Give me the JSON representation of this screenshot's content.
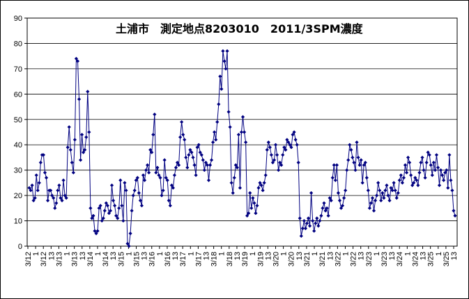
{
  "chart_data": {
    "type": "line",
    "title": "土浦市　測定地点8203010　2011/3SPM濃度",
    "xlabel": "",
    "ylabel": "",
    "ylim": [
      0,
      90
    ],
    "yticks": [
      0,
      10,
      20,
      30,
      40,
      50,
      60,
      70,
      80,
      90
    ],
    "grid": true,
    "legend": "none",
    "series_color": "#000080",
    "background_color": "#ffffff",
    "grid_color": "#000000",
    "x_start_label": "3/12 1",
    "x_step_hours": 1,
    "x_tick_labels": [
      "3/12",
      "1",
      "3/12",
      "13",
      "3/13",
      "1",
      "3/13",
      "13",
      "3/14",
      "1",
      "3/14",
      "13",
      "3/15",
      "1",
      "3/15",
      "13",
      "3/16",
      "1",
      "3/16",
      "13",
      "3/17",
      "1",
      "3/17",
      "13",
      "3/18",
      "1",
      "3/18",
      "13",
      "3/19",
      "1",
      "3/19",
      "13",
      "3/20",
      "1",
      "3/20",
      "13",
      "3/21",
      "1",
      "3/21",
      "13",
      "3/22",
      "1",
      "3/22",
      "13",
      "3/23",
      "1",
      "3/23",
      "13",
      "3/24",
      "1",
      "3/24",
      "13",
      "3/25",
      "1",
      "3/25",
      "13"
    ],
    "x_tick_labels_note_dummy": "",
    "series": [
      {
        "name": "",
        "values": [
          23,
          22,
          24,
          18,
          19,
          28,
          22,
          25,
          33,
          36,
          36,
          29,
          27,
          18,
          22,
          22,
          20,
          19,
          15,
          17,
          22,
          24,
          19,
          18,
          26,
          20,
          19,
          39,
          47,
          38,
          33,
          29,
          42,
          74,
          73,
          58,
          34,
          44,
          37,
          38,
          43,
          61,
          45,
          15,
          11,
          12,
          6,
          5,
          6,
          15,
          16,
          10,
          11,
          14,
          17,
          16,
          13,
          14,
          24,
          18,
          16,
          12,
          11,
          15,
          26,
          16,
          10,
          25,
          22,
          1,
          0,
          5,
          14,
          20,
          22,
          26,
          27,
          21,
          18,
          16,
          28,
          26,
          30,
          32,
          29,
          38,
          37,
          44,
          52,
          29,
          31,
          28,
          27,
          20,
          22,
          34,
          27,
          26,
          18,
          16,
          24,
          23,
          28,
          31,
          33,
          32,
          43,
          49,
          44,
          42,
          35,
          31,
          36,
          38,
          37,
          35,
          32,
          28,
          39,
          40,
          37,
          36,
          34,
          30,
          33,
          32,
          26,
          32,
          34,
          41,
          45,
          42,
          49,
          56,
          67,
          62,
          77,
          73,
          70,
          77,
          53,
          47,
          25,
          21,
          27,
          32,
          31,
          44,
          23,
          45,
          51,
          45,
          41,
          12,
          13,
          21,
          15,
          19,
          17,
          13,
          16,
          23,
          25,
          24,
          22,
          25,
          28,
          38,
          41,
          39,
          36,
          33,
          34,
          40,
          36,
          30,
          33,
          32,
          36,
          39,
          38,
          42,
          41,
          40,
          39,
          44,
          45,
          42,
          40,
          33,
          11,
          4,
          7,
          10,
          7,
          9,
          11,
          8,
          21,
          10,
          6,
          9,
          11,
          8,
          10,
          12,
          15,
          17,
          14,
          15,
          12,
          19,
          18,
          27,
          32,
          26,
          32,
          21,
          18,
          15,
          16,
          19,
          22,
          30,
          34,
          40,
          38,
          35,
          33,
          30,
          41,
          35,
          32,
          34,
          25,
          32,
          33,
          27,
          22,
          15,
          17,
          19,
          14,
          18,
          20,
          25,
          22,
          18,
          21,
          19,
          22,
          24,
          20,
          18,
          23,
          22,
          25,
          22,
          19,
          21,
          26,
          28,
          25,
          27,
          32,
          29,
          35,
          33,
          28,
          24,
          25,
          27,
          26,
          24,
          29,
          33,
          35,
          30,
          27,
          33,
          37,
          36,
          32,
          28,
          33,
          30,
          36,
          31,
          24,
          30,
          28,
          26,
          29,
          30,
          23,
          36,
          26,
          22,
          14,
          12
        ]
      }
    ]
  }
}
